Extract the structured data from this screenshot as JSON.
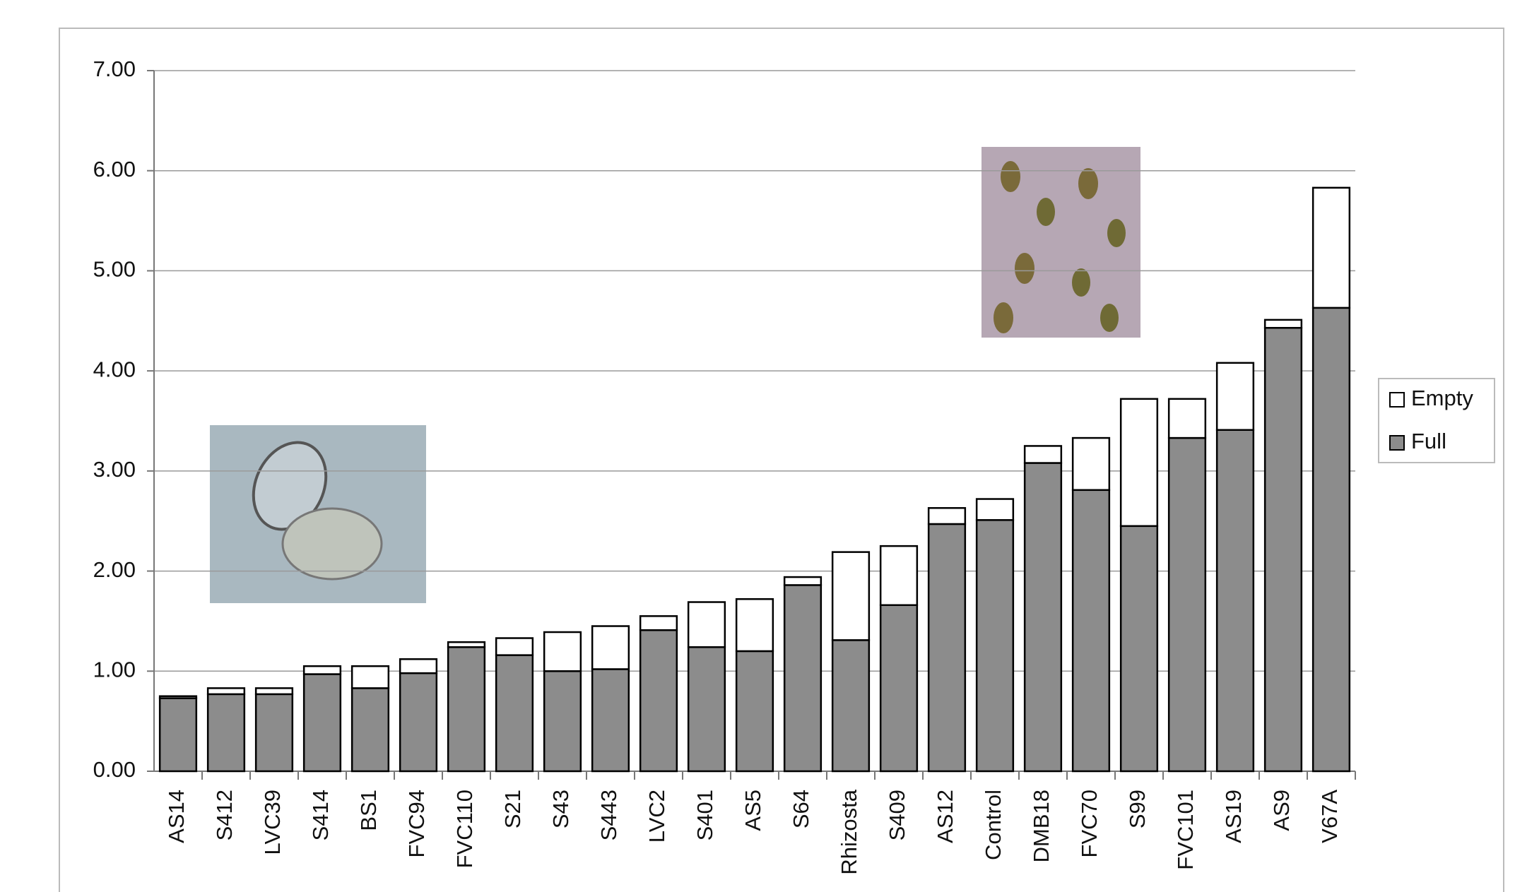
{
  "chart_data": {
    "type": "stacked_bar",
    "categories": [
      "AS14",
      "S412",
      "LVC39",
      "S414",
      "BS1",
      "FVC94",
      "FVC110",
      "S21",
      "S43",
      "S443",
      "LVC2",
      "S401",
      "AS5",
      "S64",
      "Rhizosta",
      "S409",
      "AS12",
      "Control",
      "DMB18",
      "FVC70",
      "S99",
      "FVC101",
      "AS19",
      "AS9",
      "V67A"
    ],
    "series": [
      {
        "name": "Full",
        "color": "#8c8c8c",
        "values": [
          0.73,
          0.77,
          0.77,
          0.97,
          0.83,
          0.98,
          1.24,
          1.16,
          1.0,
          1.02,
          1.41,
          1.24,
          1.2,
          1.86,
          1.31,
          1.66,
          2.47,
          2.51,
          3.08,
          2.81,
          2.45,
          3.33,
          3.41,
          4.43,
          4.63
        ]
      },
      {
        "name": "Empty",
        "color": "#ffffff",
        "values": [
          0.02,
          0.06,
          0.06,
          0.08,
          0.22,
          0.14,
          0.05,
          0.17,
          0.39,
          0.43,
          0.14,
          0.45,
          0.52,
          0.08,
          0.88,
          0.59,
          0.16,
          0.21,
          0.17,
          0.52,
          1.27,
          0.39,
          0.67,
          0.08,
          1.2
        ]
      }
    ],
    "ylim": [
      0,
      7
    ],
    "yticks": [
      {
        "value": 0,
        "label": "0.00"
      },
      {
        "value": 1,
        "label": "1.00"
      },
      {
        "value": 2,
        "label": "2.00"
      },
      {
        "value": 3,
        "label": "3.00"
      },
      {
        "value": 4,
        "label": "4.00"
      },
      {
        "value": 5,
        "label": "5.00"
      },
      {
        "value": 6,
        "label": "6.00"
      },
      {
        "value": 7,
        "label": "7.00"
      }
    ],
    "grid": true,
    "legend": "right"
  }
}
